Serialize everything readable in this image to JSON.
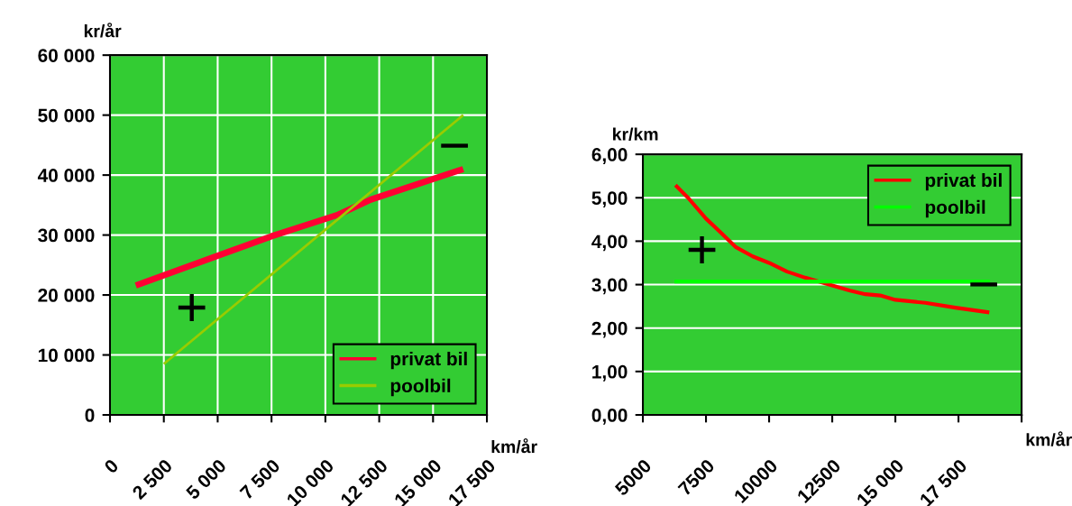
{
  "chart_data": [
    {
      "type": "line",
      "xlabel": "km/år",
      "ylabel": "kr/år",
      "xlim": [
        0,
        17500
      ],
      "ylim": [
        0,
        60000
      ],
      "xticks": [
        {
          "value": 0,
          "label": "0"
        },
        {
          "value": 2500,
          "label": "2 500"
        },
        {
          "value": 5000,
          "label": "5 000"
        },
        {
          "value": 7500,
          "label": "7 500"
        },
        {
          "value": 10000,
          "label": "10 000"
        },
        {
          "value": 12500,
          "label": "12 500"
        },
        {
          "value": 15000,
          "label": "15 000"
        },
        {
          "value": 17500,
          "label": "17 500"
        }
      ],
      "yticks": [
        {
          "value": 0,
          "label": "0"
        },
        {
          "value": 10000,
          "label": "10 000"
        },
        {
          "value": 20000,
          "label": "20 000"
        },
        {
          "value": 30000,
          "label": "30 000"
        },
        {
          "value": 40000,
          "label": "40 000"
        },
        {
          "value": 50000,
          "label": "50 000"
        },
        {
          "value": 60000,
          "label": "60 000"
        }
      ],
      "grid": true,
      "legend": "bottom right",
      "series": [
        {
          "name": "privat bil",
          "color": "#ff0033",
          "x": [
            1200,
            7500,
            10600,
            12100,
            16400
          ],
          "values": [
            21600,
            29800,
            33400,
            35900,
            41000
          ]
        },
        {
          "name": "poolbil",
          "color": "#99cc00",
          "x": [
            2500,
            16400
          ],
          "values": [
            8500,
            50000
          ]
        }
      ],
      "annotations": [
        "+",
        "−"
      ]
    },
    {
      "type": "line",
      "xlabel": "km/år",
      "ylabel": "kr/km",
      "xlim": [
        5000,
        20000
      ],
      "ylim": [
        0,
        6
      ],
      "xticks": [
        {
          "value": 5000,
          "label": "5000"
        },
        {
          "value": 7500,
          "label": "7500"
        },
        {
          "value": 10000,
          "label": "10000"
        },
        {
          "value": 12500,
          "label": "12500"
        },
        {
          "value": 15000,
          "label": "15 000"
        },
        {
          "value": 17500,
          "label": "17 500"
        },
        {
          "value": 20000,
          "label": null
        }
      ],
      "yticks": [
        {
          "value": 0,
          "label": "0,00"
        },
        {
          "value": 1,
          "label": "1,00"
        },
        {
          "value": 2,
          "label": "2,00"
        },
        {
          "value": 3,
          "label": "3,00"
        },
        {
          "value": 4,
          "label": "4,00"
        },
        {
          "value": 5,
          "label": "5,00"
        },
        {
          "value": 6,
          "label": "6,00"
        }
      ],
      "grid": "y",
      "legend": "top right",
      "series": [
        {
          "name": "privat bil",
          "color": "#ff0000",
          "x": [
            6290,
            6790,
            7500,
            8100,
            8690,
            9350,
            10000,
            10710,
            11430,
            12500,
            13210,
            13810,
            14400,
            15000,
            16190,
            17380,
            18720
          ],
          "values": [
            5.29,
            5.0,
            4.52,
            4.19,
            3.86,
            3.65,
            3.5,
            3.3,
            3.16,
            2.98,
            2.86,
            2.78,
            2.75,
            2.65,
            2.58,
            2.47,
            2.36
          ]
        },
        {
          "name": "poolbil",
          "color": "#00ff00",
          "x": [
            6250,
            18750
          ],
          "values": [
            3.07,
            3.07
          ]
        }
      ],
      "annotations": [
        "+",
        "−"
      ]
    }
  ]
}
